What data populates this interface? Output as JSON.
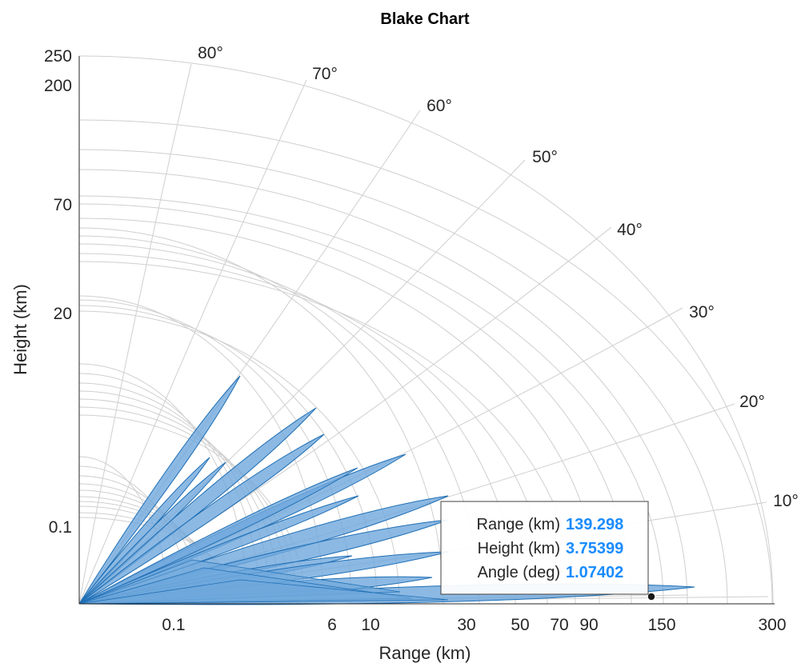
{
  "chart_data": {
    "type": "blake",
    "title": "Blake Chart",
    "xlabel": "Range (km)",
    "ylabel": "Height (km)",
    "xticks": [
      "0.1",
      "6",
      "10",
      "30",
      "50",
      "70",
      "90",
      "150",
      "300"
    ],
    "yticks": [
      "250",
      "200",
      "70",
      "20",
      "0.1"
    ],
    "angle_labels": [
      "80°",
      "70°",
      "60°",
      "50°",
      "40°",
      "30°",
      "20°",
      "10°"
    ],
    "angle_values_deg": [
      80,
      70,
      60,
      50,
      40,
      30,
      20,
      10
    ],
    "max_range_km": 300,
    "max_height_km": 250,
    "grid": true,
    "lobe_color": "#6fa8dc",
    "lobe_edge_color": "#1f6fb5",
    "lobes": [
      {
        "elevation_deg": 27.5,
        "range_km": 0.3
      },
      {
        "elevation_deg": 22.0,
        "range_km": 0.25
      },
      {
        "elevation_deg": 20.0,
        "range_km": 0.35
      },
      {
        "elevation_deg": 17.5,
        "range_km": 6
      },
      {
        "elevation_deg": 15.5,
        "range_km": 6
      },
      {
        "elevation_deg": 13.0,
        "range_km": 20
      },
      {
        "elevation_deg": 10.5,
        "range_km": 10
      },
      {
        "elevation_deg": 9.0,
        "range_km": 8
      },
      {
        "elevation_deg": 7.5,
        "range_km": 35
      },
      {
        "elevation_deg": 5.5,
        "range_km": 30
      },
      {
        "elevation_deg": 4.5,
        "range_km": 12
      },
      {
        "elevation_deg": 3.3,
        "range_km": 25
      },
      {
        "elevation_deg": 2.0,
        "range_km": 25
      },
      {
        "elevation_deg": 1.07,
        "range_km": 180
      }
    ],
    "datatip": {
      "rows": [
        {
          "label": "Range (km)",
          "value": "139.298"
        },
        {
          "label": "Height (km)",
          "value": "3.75399"
        },
        {
          "label": "Angle (deg)",
          "value": "1.07402"
        }
      ],
      "value_color": "#1a8cff",
      "point": {
        "range_km": 139.298,
        "height_km": 3.75399
      }
    }
  }
}
